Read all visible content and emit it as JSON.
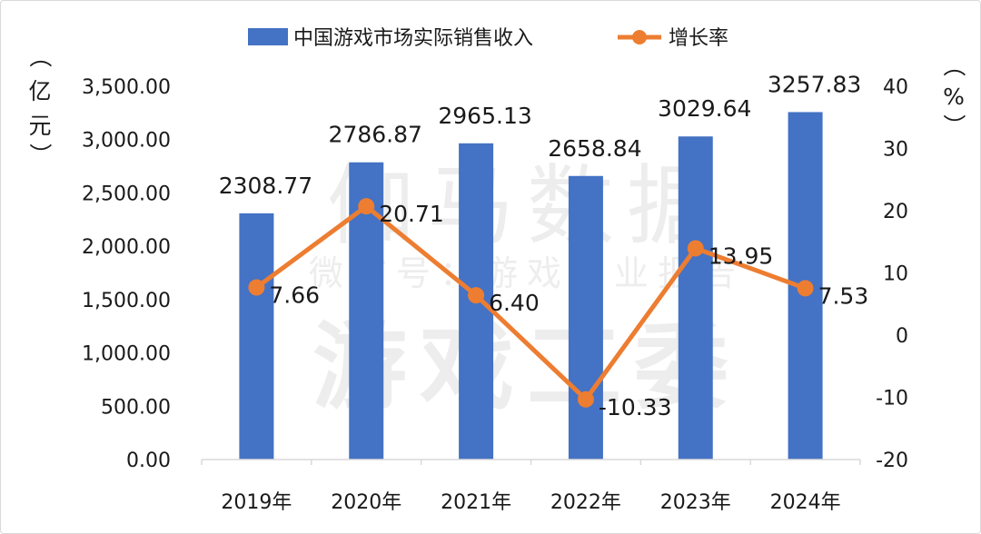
{
  "chart_data": {
    "type": "bar",
    "categories": [
      "2019年",
      "2020年",
      "2021年",
      "2022年",
      "2023年",
      "2024年"
    ],
    "series": [
      {
        "name": "中国游戏市场实际销售收入",
        "type": "bar",
        "axis": "left",
        "color": "#4472c4",
        "values": [
          2308.77,
          2786.87,
          2965.13,
          2658.84,
          3029.64,
          3257.83
        ],
        "labels": [
          "2308.77",
          "2786.87",
          "2965.13",
          "2658.84",
          "3029.64",
          "3257.83"
        ]
      },
      {
        "name": "增长率",
        "type": "line",
        "axis": "right",
        "color": "#ed7d31",
        "values": [
          7.66,
          20.71,
          6.4,
          -10.33,
          13.95,
          7.53
        ],
        "labels": [
          "7.66",
          "20.71",
          "6.40",
          "-10.33",
          "13.95",
          "7.53"
        ]
      }
    ],
    "y_left": {
      "label_chars": [
        "（",
        "亿",
        "元",
        "）"
      ],
      "ylim": [
        0,
        3500
      ],
      "ticks": [
        0,
        500,
        1000,
        1500,
        2000,
        2500,
        3000,
        3500
      ],
      "tick_labels": [
        "0.00",
        "500.00",
        "1,000.00",
        "1,500.00",
        "2,000.00",
        "2,500.00",
        "3,000.00",
        "3,500.00"
      ]
    },
    "y_right": {
      "label_chars": [
        "（",
        "%",
        "）"
      ],
      "ylim": [
        -20,
        40
      ],
      "ticks": [
        -20,
        -10,
        0,
        10,
        20,
        30,
        40
      ],
      "tick_labels": [
        "-20",
        "-10",
        "0",
        "10",
        "20",
        "30",
        "40"
      ]
    },
    "legend_position": "top",
    "grid": false
  },
  "watermark": {
    "line1": "伽马数据",
    "line2": "微信号：游戏产业报告",
    "line3": "游戏工委"
  }
}
